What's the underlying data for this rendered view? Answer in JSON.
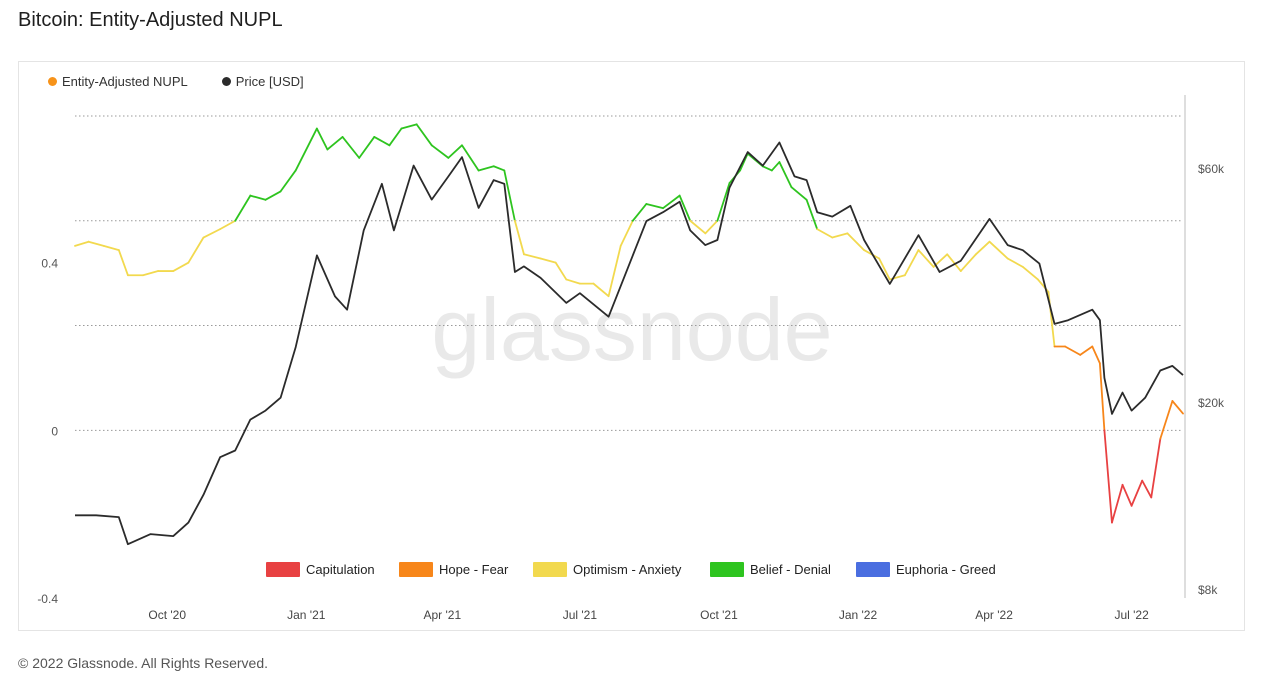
{
  "title": "Bitcoin: Entity-Adjusted NUPL",
  "footer": "© 2022 Glassnode. All Rights Reserved.",
  "watermark": "glassnode",
  "colors": {
    "nupl": "#f7931a",
    "price": "#2b2b2b",
    "capitulation": "#e84142",
    "hope_fear": "#f7861a",
    "optimism_anxiety": "#f2d94e",
    "belief_denial": "#2ec41f",
    "euphoria_greed": "#4a6ee0"
  },
  "legend_top": [
    {
      "label": "Entity-Adjusted NUPL",
      "color": "#f7931a"
    },
    {
      "label": "Price [USD]",
      "color": "#2b2b2b"
    }
  ],
  "legend_bottom": [
    {
      "label": "Capitulation",
      "color": "#e84142"
    },
    {
      "label": "Hope - Fear",
      "color": "#f7861a"
    },
    {
      "label": "Optimism - Anxiety",
      "color": "#f2d94e"
    },
    {
      "label": "Belief - Denial",
      "color": "#2ec41f"
    },
    {
      "label": "Euphoria - Greed",
      "color": "#4a6ee0"
    }
  ],
  "chart_data": {
    "type": "line",
    "x_ticks": [
      {
        "label": "Oct '20",
        "date": "2020-10-01"
      },
      {
        "label": "Jan '21",
        "date": "2021-01-01"
      },
      {
        "label": "Apr '21",
        "date": "2021-04-01"
      },
      {
        "label": "Jul '21",
        "date": "2021-07-01"
      },
      {
        "label": "Oct '21",
        "date": "2021-10-01"
      },
      {
        "label": "Jan '22",
        "date": "2022-01-01"
      },
      {
        "label": "Apr '22",
        "date": "2022-04-01"
      },
      {
        "label": "Jul '22",
        "date": "2022-07-01"
      }
    ],
    "x_range": [
      "2020-08-01",
      "2022-08-04"
    ],
    "y_left": {
      "ticks": [
        0.4,
        0,
        -0.4
      ],
      "tick_labels": [
        "0.4",
        "0",
        "-0.4"
      ],
      "range": [
        -0.4,
        0.8
      ]
    },
    "y_right": {
      "scale": "log",
      "ticks": [
        60000,
        20000,
        8000
      ],
      "tick_labels": [
        "$60k",
        "$20k",
        "$8k"
      ],
      "range": [
        8000,
        85000
      ]
    },
    "thresholds": [
      0,
      0.25,
      0.5,
      0.75
    ],
    "series": [
      {
        "name": "Entity-Adjusted NUPL",
        "axis": "left",
        "points": [
          [
            "2020-08-01",
            0.44
          ],
          [
            "2020-08-10",
            0.45
          ],
          [
            "2020-08-20",
            0.44
          ],
          [
            "2020-08-30",
            0.43
          ],
          [
            "2020-09-05",
            0.37
          ],
          [
            "2020-09-15",
            0.37
          ],
          [
            "2020-09-25",
            0.38
          ],
          [
            "2020-10-05",
            0.38
          ],
          [
            "2020-10-15",
            0.4
          ],
          [
            "2020-10-25",
            0.46
          ],
          [
            "2020-11-05",
            0.48
          ],
          [
            "2020-11-15",
            0.5
          ],
          [
            "2020-11-25",
            0.56
          ],
          [
            "2020-12-05",
            0.55
          ],
          [
            "2020-12-15",
            0.57
          ],
          [
            "2020-12-25",
            0.62
          ],
          [
            "2021-01-08",
            0.72
          ],
          [
            "2021-01-15",
            0.67
          ],
          [
            "2021-01-25",
            0.7
          ],
          [
            "2021-02-05",
            0.65
          ],
          [
            "2021-02-15",
            0.7
          ],
          [
            "2021-02-25",
            0.68
          ],
          [
            "2021-03-05",
            0.72
          ],
          [
            "2021-03-15",
            0.73
          ],
          [
            "2021-03-25",
            0.68
          ],
          [
            "2021-04-05",
            0.65
          ],
          [
            "2021-04-14",
            0.68
          ],
          [
            "2021-04-25",
            0.62
          ],
          [
            "2021-05-05",
            0.63
          ],
          [
            "2021-05-12",
            0.62
          ],
          [
            "2021-05-19",
            0.5
          ],
          [
            "2021-05-25",
            0.42
          ],
          [
            "2021-06-05",
            0.41
          ],
          [
            "2021-06-15",
            0.4
          ],
          [
            "2021-06-22",
            0.36
          ],
          [
            "2021-07-01",
            0.35
          ],
          [
            "2021-07-10",
            0.35
          ],
          [
            "2021-07-20",
            0.32
          ],
          [
            "2021-07-28",
            0.44
          ],
          [
            "2021-08-05",
            0.5
          ],
          [
            "2021-08-14",
            0.54
          ],
          [
            "2021-08-25",
            0.53
          ],
          [
            "2021-09-05",
            0.56
          ],
          [
            "2021-09-12",
            0.5
          ],
          [
            "2021-09-22",
            0.47
          ],
          [
            "2021-09-30",
            0.5
          ],
          [
            "2021-10-08",
            0.59
          ],
          [
            "2021-10-15",
            0.62
          ],
          [
            "2021-10-20",
            0.66
          ],
          [
            "2021-10-30",
            0.63
          ],
          [
            "2021-11-05",
            0.62
          ],
          [
            "2021-11-10",
            0.64
          ],
          [
            "2021-11-18",
            0.58
          ],
          [
            "2021-11-28",
            0.55
          ],
          [
            "2021-12-05",
            0.48
          ],
          [
            "2021-12-15",
            0.46
          ],
          [
            "2021-12-25",
            0.47
          ],
          [
            "2022-01-05",
            0.43
          ],
          [
            "2022-01-15",
            0.41
          ],
          [
            "2022-01-22",
            0.36
          ],
          [
            "2022-02-01",
            0.37
          ],
          [
            "2022-02-10",
            0.43
          ],
          [
            "2022-02-20",
            0.39
          ],
          [
            "2022-03-01",
            0.42
          ],
          [
            "2022-03-10",
            0.38
          ],
          [
            "2022-03-20",
            0.42
          ],
          [
            "2022-03-29",
            0.45
          ],
          [
            "2022-04-10",
            0.41
          ],
          [
            "2022-04-20",
            0.39
          ],
          [
            "2022-04-30",
            0.36
          ],
          [
            "2022-05-07",
            0.33
          ],
          [
            "2022-05-11",
            0.2
          ],
          [
            "2022-05-18",
            0.2
          ],
          [
            "2022-05-28",
            0.18
          ],
          [
            "2022-06-05",
            0.2
          ],
          [
            "2022-06-10",
            0.16
          ],
          [
            "2022-06-13",
            0.0
          ],
          [
            "2022-06-18",
            -0.22
          ],
          [
            "2022-06-25",
            -0.13
          ],
          [
            "2022-07-01",
            -0.18
          ],
          [
            "2022-07-08",
            -0.12
          ],
          [
            "2022-07-14",
            -0.16
          ],
          [
            "2022-07-20",
            -0.02
          ],
          [
            "2022-07-28",
            0.07
          ],
          [
            "2022-08-04",
            0.04
          ]
        ]
      },
      {
        "name": "Price [USD]",
        "axis": "right",
        "points": [
          [
            "2020-08-01",
            11800
          ],
          [
            "2020-08-15",
            11800
          ],
          [
            "2020-08-30",
            11700
          ],
          [
            "2020-09-05",
            10300
          ],
          [
            "2020-09-20",
            10800
          ],
          [
            "2020-10-05",
            10700
          ],
          [
            "2020-10-15",
            11400
          ],
          [
            "2020-10-25",
            13000
          ],
          [
            "2020-11-05",
            15500
          ],
          [
            "2020-11-15",
            16000
          ],
          [
            "2020-11-25",
            18500
          ],
          [
            "2020-12-05",
            19300
          ],
          [
            "2020-12-15",
            20500
          ],
          [
            "2020-12-25",
            26000
          ],
          [
            "2021-01-08",
            40000
          ],
          [
            "2021-01-20",
            33000
          ],
          [
            "2021-01-28",
            31000
          ],
          [
            "2021-02-08",
            45000
          ],
          [
            "2021-02-20",
            56000
          ],
          [
            "2021-02-28",
            45000
          ],
          [
            "2021-03-13",
            61000
          ],
          [
            "2021-03-25",
            52000
          ],
          [
            "2021-04-05",
            58000
          ],
          [
            "2021-04-14",
            63500
          ],
          [
            "2021-04-25",
            50000
          ],
          [
            "2021-05-05",
            57000
          ],
          [
            "2021-05-12",
            56000
          ],
          [
            "2021-05-19",
            37000
          ],
          [
            "2021-05-25",
            38000
          ],
          [
            "2021-06-05",
            36000
          ],
          [
            "2021-06-22",
            32000
          ],
          [
            "2021-07-01",
            33500
          ],
          [
            "2021-07-20",
            30000
          ],
          [
            "2021-08-05",
            40000
          ],
          [
            "2021-08-14",
            47000
          ],
          [
            "2021-08-25",
            49000
          ],
          [
            "2021-09-05",
            51500
          ],
          [
            "2021-09-12",
            45000
          ],
          [
            "2021-09-22",
            42000
          ],
          [
            "2021-09-30",
            43000
          ],
          [
            "2021-10-08",
            55000
          ],
          [
            "2021-10-20",
            65000
          ],
          [
            "2021-10-30",
            61000
          ],
          [
            "2021-11-10",
            68000
          ],
          [
            "2021-11-20",
            58000
          ],
          [
            "2021-11-28",
            57000
          ],
          [
            "2021-12-05",
            49000
          ],
          [
            "2021-12-15",
            48000
          ],
          [
            "2021-12-27",
            50500
          ],
          [
            "2022-01-05",
            43000
          ],
          [
            "2022-01-22",
            35000
          ],
          [
            "2022-02-10",
            44000
          ],
          [
            "2022-02-24",
            37000
          ],
          [
            "2022-03-10",
            39000
          ],
          [
            "2022-03-29",
            47500
          ],
          [
            "2022-04-10",
            42000
          ],
          [
            "2022-04-20",
            41000
          ],
          [
            "2022-05-01",
            38500
          ],
          [
            "2022-05-11",
            29000
          ],
          [
            "2022-05-20",
            29500
          ],
          [
            "2022-06-05",
            31000
          ],
          [
            "2022-06-10",
            29500
          ],
          [
            "2022-06-13",
            22500
          ],
          [
            "2022-06-18",
            19000
          ],
          [
            "2022-06-25",
            21000
          ],
          [
            "2022-07-01",
            19300
          ],
          [
            "2022-07-10",
            20500
          ],
          [
            "2022-07-20",
            23300
          ],
          [
            "2022-07-28",
            23800
          ],
          [
            "2022-08-04",
            22800
          ]
        ]
      }
    ]
  }
}
